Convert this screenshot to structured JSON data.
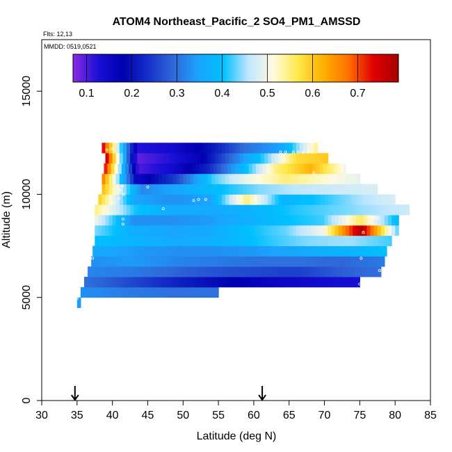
{
  "chart_data": {
    "type": "heatmap",
    "title": "ATOM4 Northeast_Pacific_2 SO4_PM1_AMSSD",
    "subtitle_flights": "Flts: 12,13",
    "subtitle_dates": "MMDD: 0519,0521",
    "xlabel": "Latitude (deg N)",
    "ylabel": "Altitude (m)",
    "xlim": [
      30,
      85
    ],
    "ylim": [
      0,
      17500
    ],
    "x_ticks": [
      "30",
      "35",
      "40",
      "45",
      "50",
      "55",
      "60",
      "65",
      "70",
      "75",
      "80",
      "85"
    ],
    "y_ticks": [
      "0",
      "5000",
      "10000",
      "15000"
    ],
    "colorbar": {
      "range": [
        0.07,
        0.79
      ],
      "ticks": [
        "0.1",
        "0.2",
        "0.3",
        "0.4",
        "0.5",
        "0.6",
        "0.7"
      ],
      "colors": [
        "#8a2be2",
        "#1a0fd6",
        "#0000b0",
        "#1530c8",
        "#2f68d8",
        "#1aa3ff",
        "#00c0ff",
        "#bfe6ff",
        "#fffbe0",
        "#ffe84a",
        "#ffb000",
        "#ff7000",
        "#e00000",
        "#a50000"
      ]
    },
    "arrow_markers_lat": [
      34.7,
      61.2
    ],
    "bands": [
      {
        "alt_low": 4500,
        "alt_high": 5000,
        "lat_start": 35.0,
        "lat_end": 35.5,
        "values": [
          0.34
        ]
      },
      {
        "alt_low": 5000,
        "alt_high": 5500,
        "lat_start": 35.5,
        "lat_end": 55.0,
        "values": [
          0.33,
          0.31,
          0.3,
          0.3
        ]
      },
      {
        "alt_low": 5500,
        "alt_high": 6000,
        "lat_start": 36.0,
        "lat_end": 75.0,
        "values": [
          0.3,
          0.26,
          0.22,
          0.19,
          0.16,
          0.14,
          0.13
        ]
      },
      {
        "alt_low": 6000,
        "alt_high": 6500,
        "lat_start": 36.5,
        "lat_end": 78.0,
        "values": [
          0.32,
          0.31,
          0.29,
          0.27,
          0.26,
          0.25,
          0.28,
          0.3
        ]
      },
      {
        "alt_low": 6500,
        "alt_high": 7000,
        "lat_start": 37.0,
        "lat_end": 78.5,
        "values": [
          0.33,
          0.34,
          0.32,
          0.31,
          0.3,
          0.3,
          0.29,
          0.31
        ]
      },
      {
        "alt_low": 7000,
        "alt_high": 7500,
        "lat_start": 37.2,
        "lat_end": 78.8,
        "values": [
          0.36,
          0.34,
          0.33,
          0.33,
          0.34,
          0.36,
          0.38,
          0.4
        ]
      },
      {
        "alt_low": 7500,
        "alt_high": 8000,
        "lat_start": 37.5,
        "lat_end": 79.5,
        "values": [
          0.4,
          0.38,
          0.36,
          0.38,
          0.41,
          0.44,
          0.45,
          0.42
        ]
      },
      {
        "alt_low": 8000,
        "alt_high": 8500,
        "lat_start": 37.5,
        "lat_end": 80.5,
        "values": [
          0.44,
          0.37,
          0.35,
          0.36,
          0.4,
          0.43,
          0.5,
          0.78,
          0.42
        ]
      },
      {
        "alt_low": 8500,
        "alt_high": 9000,
        "lat_start": 37.5,
        "lat_end": 80.5,
        "values": [
          0.5,
          0.33,
          0.33,
          0.34,
          0.37,
          0.4,
          0.42,
          0.56,
          0.38
        ]
      },
      {
        "alt_low": 9000,
        "alt_high": 9500,
        "lat_start": 37.5,
        "lat_end": 82.0,
        "values": [
          0.55,
          0.41,
          0.36,
          0.36,
          0.38,
          0.41,
          0.43,
          0.45,
          0.47
        ]
      },
      {
        "alt_low": 9500,
        "alt_high": 10000,
        "lat_start": 38.0,
        "lat_end": 80.0,
        "values": [
          0.6,
          0.35,
          0.33,
          0.35,
          0.55,
          0.38,
          0.41,
          0.45,
          0.48
        ]
      },
      {
        "alt_low": 10000,
        "alt_high": 10500,
        "lat_start": 38.5,
        "lat_end": 77.5,
        "values": [
          0.62,
          0.32,
          0.36,
          0.4,
          0.44,
          0.46,
          0.47,
          0.48
        ]
      },
      {
        "alt_low": 10500,
        "alt_high": 11000,
        "lat_start": 38.5,
        "lat_end": 75.0,
        "values": [
          0.68,
          0.15,
          0.25,
          0.42,
          0.5,
          0.55,
          0.52,
          0.49
        ]
      },
      {
        "alt_low": 11000,
        "alt_high": 11500,
        "lat_start": 38.8,
        "lat_end": 73.0,
        "values": [
          0.75,
          0.1,
          0.14,
          0.22,
          0.38,
          0.55,
          0.62,
          0.5
        ]
      },
      {
        "alt_low": 11500,
        "alt_high": 12000,
        "lat_start": 39.0,
        "lat_end": 70.5,
        "values": [
          0.78,
          0.09,
          0.12,
          0.17,
          0.3,
          0.42,
          0.58,
          0.6
        ]
      },
      {
        "alt_low": 12000,
        "alt_high": 12500,
        "lat_start": 38.5,
        "lat_end": 69.0,
        "values": [
          0.76,
          0.12,
          0.14,
          0.2,
          0.3,
          0.35,
          0.55
        ]
      }
    ],
    "measurement_points": [
      {
        "lat": 35.0,
        "alt": 4950
      },
      {
        "lat": 37.2,
        "alt": 6900
      },
      {
        "lat": 39.2,
        "alt": 12150
      },
      {
        "lat": 39.9,
        "alt": 12200
      },
      {
        "lat": 40.4,
        "alt": 11250
      },
      {
        "lat": 40.9,
        "alt": 9800
      },
      {
        "lat": 41.1,
        "alt": 10200
      },
      {
        "lat": 41.4,
        "alt": 10400
      },
      {
        "lat": 41.6,
        "alt": 10000
      },
      {
        "lat": 41.5,
        "alt": 8800
      },
      {
        "lat": 41.5,
        "alt": 8550
      },
      {
        "lat": 45.0,
        "alt": 10350
      },
      {
        "lat": 47.2,
        "alt": 9300
      },
      {
        "lat": 51.5,
        "alt": 9700
      },
      {
        "lat": 52.2,
        "alt": 9750
      },
      {
        "lat": 53.2,
        "alt": 9750
      },
      {
        "lat": 63.8,
        "alt": 12050
      },
      {
        "lat": 64.5,
        "alt": 12050
      },
      {
        "lat": 65.6,
        "alt": 12050
      },
      {
        "lat": 66.3,
        "alt": 12050
      },
      {
        "lat": 67.0,
        "alt": 12050
      },
      {
        "lat": 67.7,
        "alt": 12050
      },
      {
        "lat": 68.5,
        "alt": 11050
      },
      {
        "lat": 75.2,
        "alt": 6900
      },
      {
        "lat": 75.5,
        "alt": 8150
      },
      {
        "lat": 76.5,
        "alt": 8850
      },
      {
        "lat": 77.0,
        "alt": 8850
      },
      {
        "lat": 77.5,
        "alt": 8850
      },
      {
        "lat": 77.8,
        "alt": 6300
      },
      {
        "lat": 75.0,
        "alt": 5650
      }
    ]
  }
}
